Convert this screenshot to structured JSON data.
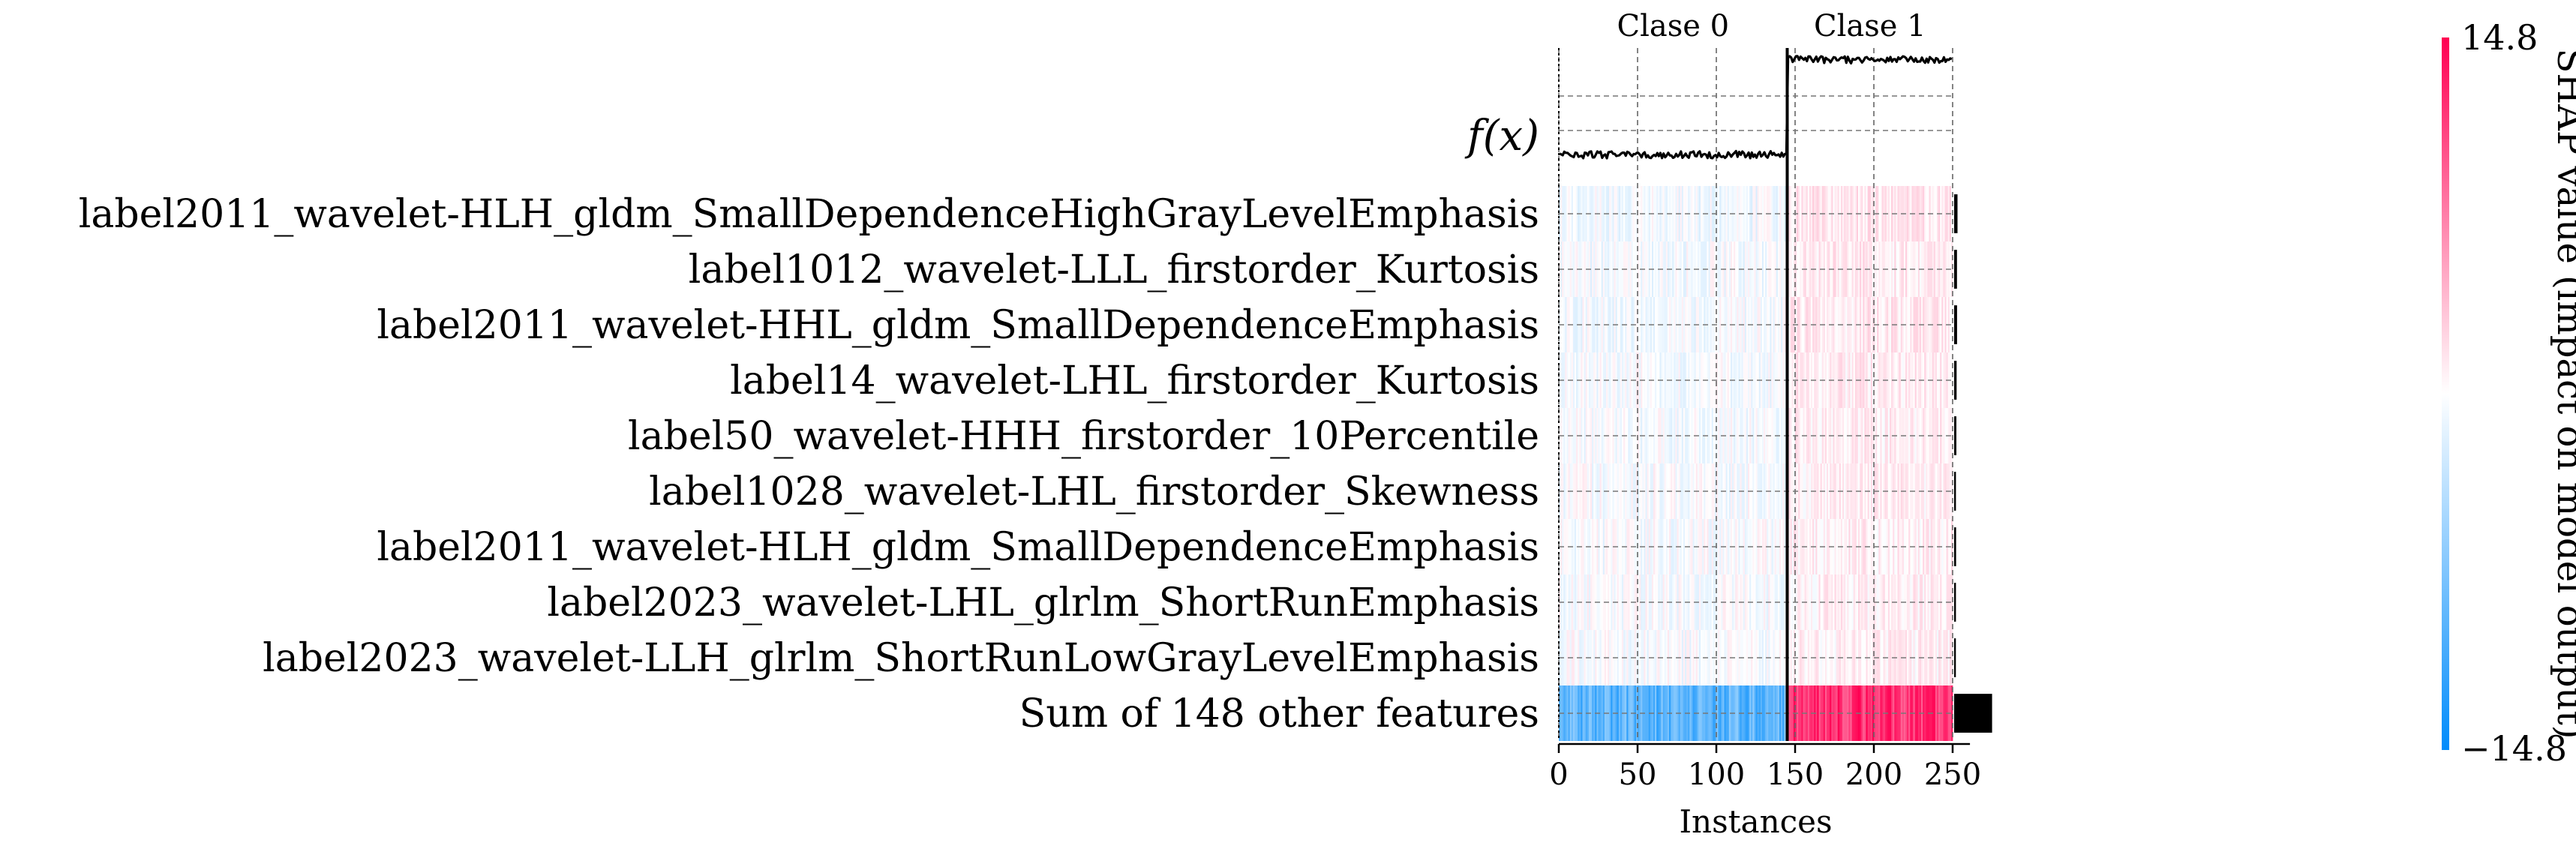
{
  "chart_data": {
    "type": "heatmap",
    "title": "",
    "xlabel": "Instances",
    "ylabel": "",
    "fx_label": "f(x)",
    "x_ticks": [
      0,
      50,
      100,
      150,
      200,
      250
    ],
    "x_tick_labels": [
      "0",
      "50",
      "100",
      "150",
      "200",
      "250"
    ],
    "xlim": [
      0,
      261
    ],
    "n_instances": 250,
    "class_boundary": 145,
    "classes": [
      {
        "label": "Clase 0",
        "start": 0,
        "end": 145
      },
      {
        "label": "Clase 1",
        "start": 145,
        "end": 250
      }
    ],
    "features": [
      "label2011_wavelet-HLH_gldm_SmallDependenceHighGrayLevelEmphasis",
      "label1012_wavelet-LLL_firstorder_Kurtosis",
      "label2011_wavelet-HHL_gldm_SmallDependenceEmphasis",
      "label14_wavelet-LHL_firstorder_Kurtosis",
      "label50_wavelet-HHH_firstorder_10Percentile",
      "label1028_wavelet-LHL_firstorder_Skewness",
      "label2011_wavelet-HLH_gldm_SmallDependenceEmphasis",
      "label2023_wavelet-LHL_glrlm_ShortRunEmphasis",
      "label2023_wavelet-LLH_glrlm_ShortRunLowGrayLevelEmphasis",
      "Sum of 148 other features"
    ],
    "feature_class_mean_shap": [
      {
        "feature": "label2011_wavelet-HLH_gldm_SmallDependenceHighGrayLevelEmphasis",
        "class0": -0.6,
        "class1": 1.4
      },
      {
        "feature": "label1012_wavelet-LLL_firstorder_Kurtosis",
        "class0": -0.5,
        "class1": 1.2
      },
      {
        "feature": "label2011_wavelet-HHL_gldm_SmallDependenceEmphasis",
        "class0": -0.45,
        "class1": 1.3
      },
      {
        "feature": "label14_wavelet-LHL_firstorder_Kurtosis",
        "class0": -0.4,
        "class1": 1.1
      },
      {
        "feature": "label50_wavelet-HHH_firstorder_10Percentile",
        "class0": -0.35,
        "class1": 1.0
      },
      {
        "feature": "label1028_wavelet-LHL_firstorder_Skewness",
        "class0": -0.2,
        "class1": 0.9
      },
      {
        "feature": "label2011_wavelet-HLH_gldm_SmallDependenceEmphasis",
        "class0": -0.3,
        "class1": 0.9
      },
      {
        "feature": "label2023_wavelet-LHL_glrlm_ShortRunEmphasis",
        "class0": -0.25,
        "class1": 0.85
      },
      {
        "feature": "label2023_wavelet-LLH_glrlm_ShortRunLowGrayLevelEmphasis",
        "class0": -0.25,
        "class1": 0.8
      },
      {
        "feature": "Sum of 148 other features",
        "class0": -9.5,
        "class1": 12.0
      }
    ],
    "fx_class_mean": {
      "class0": -9.8,
      "class1": 11.5
    },
    "colorbar": {
      "min": -14.8,
      "max": 14.8,
      "min_label": "−14.8",
      "max_label": "14.8",
      "title": "SHAP value (impact on model output)",
      "colors": [
        "#008bfb",
        "#ffffff",
        "#ff0052"
      ]
    },
    "grid": true
  }
}
